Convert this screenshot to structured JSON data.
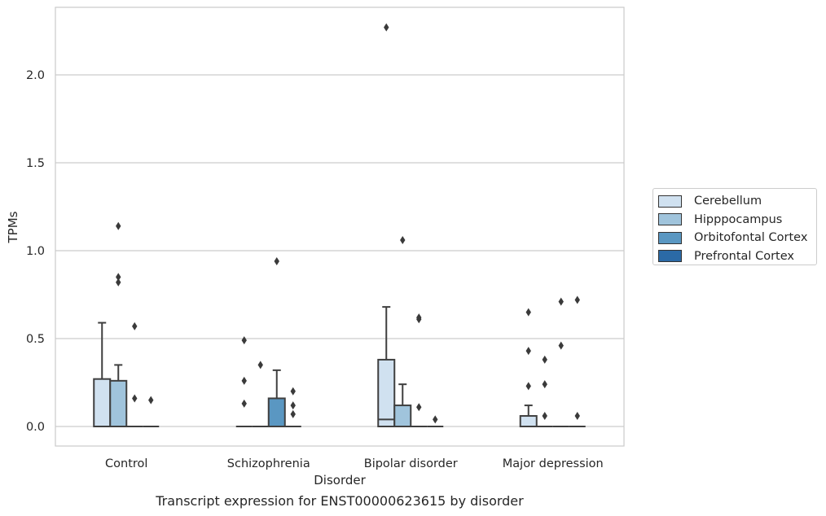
{
  "caption": "Transcript expression for ENST00000623615 by disorder",
  "chart_data": {
    "type": "box",
    "xlabel": "Disorder",
    "ylabel": "TPMs",
    "ylim": [
      -0.11,
      2.39
    ],
    "yticks": [
      0.0,
      0.5,
      1.0,
      1.5,
      2.0
    ],
    "ytick_labels": [
      "0.0",
      "0.5",
      "1.0",
      "1.5",
      "2.0"
    ],
    "grid": "y",
    "legend_position": "right",
    "categories": [
      "Control",
      "Schizophrenia",
      "Bipolar disorder",
      "Major depression"
    ],
    "series": [
      {
        "name": "Cerebellum",
        "color": "#d0e1f0",
        "boxes": [
          {
            "q1": 0.0,
            "median": 0.0,
            "q3": 0.27,
            "whisker_low": 0.0,
            "whisker_high": 0.59,
            "outliers": []
          },
          {
            "q1": 0.0,
            "median": 0.0,
            "q3": 0.0,
            "whisker_low": 0.0,
            "whisker_high": 0.0,
            "outliers": [
              0.49,
              0.26,
              0.13
            ]
          },
          {
            "q1": 0.0,
            "median": 0.04,
            "q3": 0.38,
            "whisker_low": 0.0,
            "whisker_high": 0.68,
            "outliers": [
              2.27
            ]
          },
          {
            "q1": 0.0,
            "median": 0.0,
            "q3": 0.06,
            "whisker_low": 0.0,
            "whisker_high": 0.12,
            "outliers": [
              0.65,
              0.43,
              0.23
            ]
          }
        ]
      },
      {
        "name": "Hipppocampus",
        "color": "#a0c4dc",
        "boxes": [
          {
            "q1": 0.0,
            "median": 0.0,
            "q3": 0.26,
            "whisker_low": 0.0,
            "whisker_high": 0.35,
            "outliers": [
              1.14,
              0.85,
              0.82
            ]
          },
          {
            "q1": 0.0,
            "median": 0.0,
            "q3": 0.0,
            "whisker_low": 0.0,
            "whisker_high": 0.0,
            "outliers": [
              0.35
            ]
          },
          {
            "q1": 0.0,
            "median": 0.0,
            "q3": 0.12,
            "whisker_low": 0.0,
            "whisker_high": 0.24,
            "outliers": [
              1.06
            ]
          },
          {
            "q1": 0.0,
            "median": 0.0,
            "q3": 0.0,
            "whisker_low": 0.0,
            "whisker_high": 0.0,
            "outliers": [
              0.38,
              0.24,
              0.06
            ]
          }
        ]
      },
      {
        "name": "Orbitofontal Cortex",
        "color": "#5a97c2",
        "boxes": [
          {
            "q1": 0.0,
            "median": 0.0,
            "q3": 0.0,
            "whisker_low": 0.0,
            "whisker_high": 0.0,
            "outliers": [
              0.57,
              0.16
            ]
          },
          {
            "q1": 0.0,
            "median": 0.0,
            "q3": 0.16,
            "whisker_low": 0.0,
            "whisker_high": 0.32,
            "outliers": [
              0.94
            ]
          },
          {
            "q1": 0.0,
            "median": 0.0,
            "q3": 0.0,
            "whisker_low": 0.0,
            "whisker_high": 0.0,
            "outliers": [
              0.62,
              0.61,
              0.11
            ]
          },
          {
            "q1": 0.0,
            "median": 0.0,
            "q3": 0.0,
            "whisker_low": 0.0,
            "whisker_high": 0.0,
            "outliers": [
              0.71,
              0.46
            ]
          }
        ]
      },
      {
        "name": "Prefrontal Cortex",
        "color": "#2b6aa6",
        "boxes": [
          {
            "q1": 0.0,
            "median": 0.0,
            "q3": 0.0,
            "whisker_low": 0.0,
            "whisker_high": 0.0,
            "outliers": [
              0.15
            ]
          },
          {
            "q1": 0.0,
            "median": 0.0,
            "q3": 0.0,
            "whisker_low": 0.0,
            "whisker_high": 0.0,
            "outliers": [
              0.2,
              0.12,
              0.07
            ]
          },
          {
            "q1": 0.0,
            "median": 0.0,
            "q3": 0.0,
            "whisker_low": 0.0,
            "whisker_high": 0.0,
            "outliers": [
              0.04
            ]
          },
          {
            "q1": 0.0,
            "median": 0.0,
            "q3": 0.0,
            "whisker_low": 0.0,
            "whisker_high": 0.0,
            "outliers": [
              0.72,
              0.06
            ]
          }
        ]
      }
    ]
  }
}
